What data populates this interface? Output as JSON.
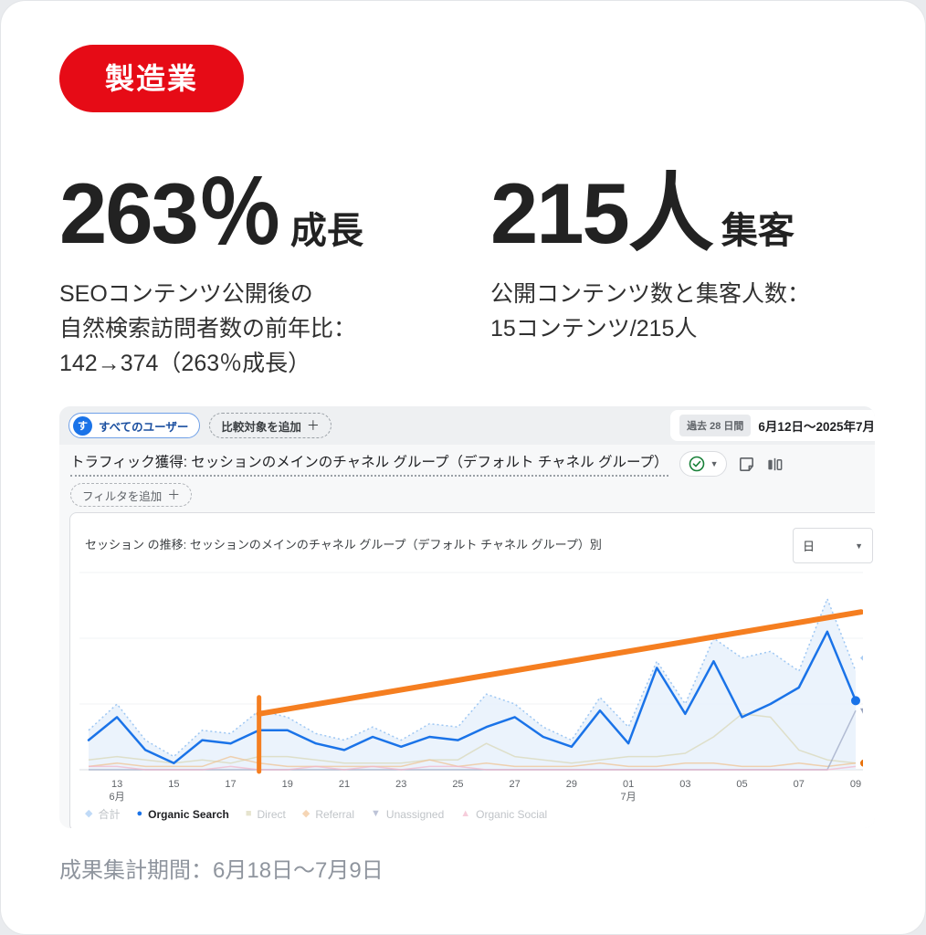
{
  "badge": "製造業",
  "stats": [
    {
      "value": "263％",
      "suffix": "成長",
      "desc_lines": [
        "SEOコンテンツ公開後の",
        "自然検索訪問者数の前年比：",
        "142→374（263％成長）"
      ]
    },
    {
      "value": "215人",
      "suffix": "集客",
      "desc_lines": [
        "公開コンテンツ数と集客人数：",
        "15コンテンツ/215人"
      ]
    }
  ],
  "ga": {
    "audience_avatar": "す",
    "audience_pill": "すべてのユーザー",
    "compare_pill": "比較対象を追加",
    "plus": "＋",
    "date_chip": "過去 28 日間",
    "date_range": "6月12日〜2025年7月",
    "report_title": "トラフィック獲得: セッションのメインのチャネル グループ（デフォルト チャネル グループ）",
    "filter_pill": "フィルタを追加",
    "panel_title": "セッション の推移: セッションのメインのチャネル グループ（デフォルト チャネル グループ）別",
    "granularity": "日"
  },
  "footer": "成果集計期間：6月18日〜7月9日",
  "colors": {
    "badge_red": "#e60b16",
    "ga_blue": "#1a73e8",
    "annotation_orange": "#f57e20",
    "total_fill": "#e7f1fb",
    "total_edge": "#9ec7f3",
    "direct": "#d9d6b4",
    "referral": "#f0c08e",
    "unassigned": "#9aa4c2",
    "organic_social": "#f2b3c9",
    "green_check": "#188038"
  },
  "chart_data": {
    "type": "line",
    "title": "セッション の推移: セッションのメインのチャネル グループ（デフォルト チャネル グループ）別",
    "granularity": "日",
    "x": [
      "6/12",
      "6/13",
      "6/14",
      "6/15",
      "6/16",
      "6/17",
      "6/18",
      "6/19",
      "6/20",
      "6/21",
      "6/22",
      "6/23",
      "6/24",
      "6/25",
      "6/26",
      "6/27",
      "6/28",
      "6/29",
      "6/30",
      "7/1",
      "7/2",
      "7/3",
      "7/4",
      "7/5",
      "7/6",
      "7/7",
      "7/8",
      "7/9"
    ],
    "ylim": [
      0,
      60
    ],
    "gridline_values": [
      20,
      40,
      60
    ],
    "legend_position": "bottom",
    "x_ticks": [
      {
        "index": 1,
        "label": "13",
        "month": "6月"
      },
      {
        "index": 3,
        "label": "15"
      },
      {
        "index": 5,
        "label": "17"
      },
      {
        "index": 7,
        "label": "19"
      },
      {
        "index": 9,
        "label": "21"
      },
      {
        "index": 11,
        "label": "23"
      },
      {
        "index": 13,
        "label": "25"
      },
      {
        "index": 15,
        "label": "27"
      },
      {
        "index": 17,
        "label": "29"
      },
      {
        "index": 19,
        "label": "01",
        "month": "7月"
      },
      {
        "index": 21,
        "label": "03"
      },
      {
        "index": 23,
        "label": "05"
      },
      {
        "index": 25,
        "label": "07"
      },
      {
        "index": 27,
        "label": "09"
      }
    ],
    "series": [
      {
        "name": "合計",
        "kind": "area",
        "color": "#9ec7f3",
        "fill": "#e7f1fb",
        "glyph": "diamond",
        "muted": true,
        "values": [
          12,
          20,
          9,
          4,
          12,
          11,
          18,
          16,
          11,
          9,
          13,
          9,
          14,
          13,
          23,
          20,
          13,
          9,
          22,
          13,
          33,
          20,
          40,
          34,
          36,
          30,
          52,
          30
        ]
      },
      {
        "name": "Organic Search",
        "kind": "line",
        "color": "#1a73e8",
        "glyph": "circle",
        "muted": false,
        "values": [
          9,
          16,
          6,
          2,
          9,
          8,
          12,
          12,
          8,
          6,
          10,
          7,
          10,
          9,
          13,
          16,
          10,
          7,
          18,
          8,
          31,
          17,
          33,
          16,
          20,
          25,
          42,
          21
        ]
      },
      {
        "name": "Direct",
        "kind": "line",
        "color": "#d9d6b4",
        "glyph": "square",
        "muted": true,
        "values": [
          3,
          4,
          3,
          2,
          3,
          2,
          4,
          4,
          3,
          2,
          2,
          2,
          3,
          3,
          8,
          4,
          3,
          2,
          3,
          4,
          4,
          5,
          10,
          17,
          16,
          6,
          3,
          2
        ]
      },
      {
        "name": "Referral",
        "kind": "line",
        "color": "#f0c08e",
        "glyph": "diamond",
        "muted": true,
        "values": [
          1,
          2,
          1,
          1,
          1,
          4,
          2,
          1,
          1,
          1,
          1,
          1,
          3,
          1,
          2,
          1,
          1,
          1,
          2,
          1,
          1,
          2,
          2,
          1,
          1,
          2,
          1,
          2
        ]
      },
      {
        "name": "Unassigned",
        "kind": "line",
        "color": "#9aa4c2",
        "glyph": "triangle-down",
        "muted": true,
        "values": [
          0,
          0,
          0,
          0,
          0,
          0,
          0,
          0,
          0,
          0,
          0,
          0,
          0,
          0,
          0,
          0,
          0,
          0,
          0,
          0,
          0,
          0,
          0,
          0,
          0,
          0,
          0,
          18
        ]
      },
      {
        "name": "Organic Social",
        "kind": "line",
        "color": "#f2b3c9",
        "glyph": "triangle-up",
        "muted": true,
        "values": [
          1,
          1,
          0,
          0,
          0,
          1,
          0,
          0,
          1,
          0,
          1,
          0,
          1,
          1,
          0,
          0,
          0,
          0,
          0,
          0,
          0,
          0,
          0,
          0,
          0,
          0,
          0,
          1
        ]
      }
    ],
    "annotation": {
      "color": "#f57e20",
      "vline_x": "6/18",
      "vline_top_value": 22,
      "trend_start_value": 17,
      "trend_end_value": 48
    },
    "end_markers": [
      {
        "shape": "diamond",
        "color": "#9ec7f3",
        "value": 34,
        "dx": 11,
        "size": 6
      },
      {
        "shape": "circle",
        "color": "#1a73e8",
        "value": 21,
        "dx": 0,
        "size": 5
      },
      {
        "shape": "triangle-down",
        "color": "#8f9bb8",
        "value": 17,
        "dx": 11,
        "size": 6
      },
      {
        "shape": "circle",
        "color": "#e8710a",
        "value": 2,
        "dx": 9,
        "size": 4
      }
    ]
  }
}
